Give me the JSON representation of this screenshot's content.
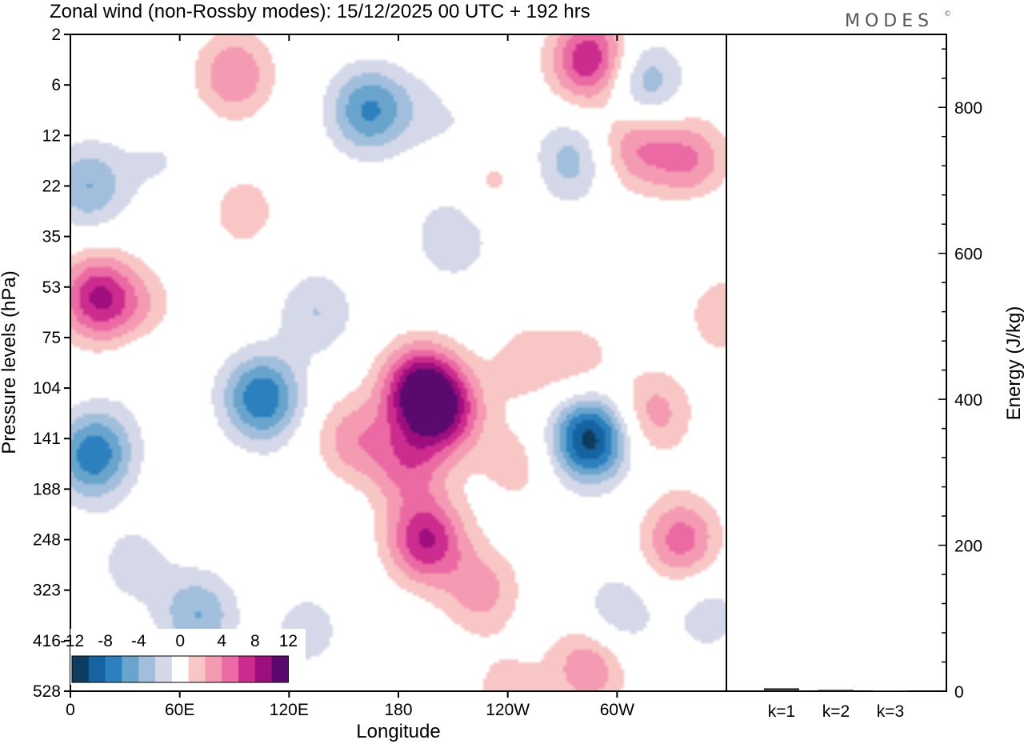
{
  "brand": {
    "name": "MODES",
    "mark": "©"
  },
  "chart_data": [
    {
      "type": "heatmap",
      "title": "Zonal wind (non-Rossby modes):  15/12/2025  00 UTC  + 192 hrs",
      "xlabel": "Longitude",
      "ylabel": "Pressure levels (hPa)",
      "x_ticks": [
        "0",
        "60E",
        "120E",
        "180",
        "120W",
        "60W"
      ],
      "y_levels": [
        "2",
        "6",
        "12",
        "22",
        "35",
        "53",
        "75",
        "104",
        "141",
        "188",
        "248",
        "323",
        "416",
        "528"
      ],
      "xlim_deg": [
        0,
        360
      ],
      "colorbar": {
        "tick_labels": [
          "-12",
          "-8",
          "-4",
          "0",
          "4",
          "8",
          "12"
        ],
        "levels": [
          -14,
          -12,
          -10,
          -8,
          -6,
          -4,
          -2,
          2,
          4,
          6,
          8,
          10,
          12,
          14
        ],
        "colors": [
          "#0e3c5e",
          "#1563a0",
          "#2b80bd",
          "#68a4cc",
          "#a1bfdc",
          "#d5d8e8",
          "#ffffff",
          "#f8c6c4",
          "#f49ab2",
          "#eb6aa3",
          "#cc2c8e",
          "#9e0e7f",
          "#5a0a6e"
        ]
      },
      "features": [
        {
          "lon": 50,
          "level": 2.5,
          "value": -2
        },
        {
          "lon": 95,
          "level": 3.5,
          "value": 3
        },
        {
          "lon": 163,
          "level": 1.5,
          "value": -8
        },
        {
          "lon": 285,
          "level": 0.5,
          "value": 10
        },
        {
          "lon": 315,
          "level": 1.0,
          "value": -6
        },
        {
          "lon": 275,
          "level": 2.5,
          "value": -5
        },
        {
          "lon": 40,
          "level": 5.5,
          "value": 3
        },
        {
          "lon": 185,
          "level": 8.5,
          "value": 6
        },
        {
          "lon": 205,
          "level": 7.5,
          "value": 9
        },
        {
          "lon": 225,
          "level": 11.0,
          "value": 5
        },
        {
          "lon": 135,
          "level": 5.5,
          "value": -4
        },
        {
          "lon": 15,
          "level": 8.2,
          "value": -6
        },
        {
          "lon": 280,
          "level": 6.5,
          "value": 3
        },
        {
          "lon": 320,
          "level": 7.5,
          "value": 5
        },
        {
          "lon": 285,
          "level": 12.5,
          "value": 6
        },
        {
          "lon": 335,
          "level": 10.0,
          "value": 7
        },
        {
          "lon": 195,
          "level": 10.0,
          "value": 10
        },
        {
          "lon": 192,
          "level": 7.0,
          "value": 12
        },
        {
          "lon": 285,
          "level": 8.0,
          "value": -13
        },
        {
          "lon": 70,
          "level": 11.5,
          "value": -6
        },
        {
          "lon": 210,
          "level": 4.0,
          "value": -4
        },
        {
          "lon": 10,
          "level": 3.0,
          "value": -6
        },
        {
          "lon": 340,
          "level": 2.5,
          "value": 6
        },
        {
          "lon": 15,
          "level": 5.2,
          "value": 10
        },
        {
          "lon": 105,
          "level": 7.2,
          "value": -10
        },
        {
          "lon": 35,
          "level": 10.5,
          "value": -3
        },
        {
          "lon": 155,
          "level": 8.0,
          "value": 5
        },
        {
          "lon": 10,
          "level": 8.5,
          "value": -4
        },
        {
          "lon": 130,
          "level": 11.8,
          "value": -3
        },
        {
          "lon": 240,
          "level": 13.0,
          "value": 3
        },
        {
          "lon": 300,
          "level": 11.5,
          "value": -4
        },
        {
          "lon": 350,
          "level": 11.5,
          "value": -3
        },
        {
          "lon": 250,
          "level": 6.5,
          "value": 3
        },
        {
          "lon": 220,
          "level": 2.0,
          "value": -2
        },
        {
          "lon": 190,
          "level": 1.5,
          "value": -2
        },
        {
          "lon": 120,
          "level": 9.5,
          "value": -2
        },
        {
          "lon": 345,
          "level": 4.0,
          "value": -2
        },
        {
          "lon": 45,
          "level": 6.5,
          "value": -2
        },
        {
          "lon": 90,
          "level": 0.8,
          "value": 6
        },
        {
          "lon": 310,
          "level": 2.2,
          "value": 6
        },
        {
          "lon": 360,
          "level": 5.5,
          "value": 4
        },
        {
          "lon": 245,
          "level": 8.5,
          "value": 3
        },
        {
          "lon": 230,
          "level": 2.8,
          "value": 3
        }
      ]
    },
    {
      "type": "bar",
      "ylabel": "Energy (J/kg)",
      "categories": [
        "k=1",
        "k=2",
        "k=3"
      ],
      "values": [
        4,
        2,
        1
      ],
      "y_ticks": [
        "0",
        "200",
        "400",
        "600",
        "800"
      ],
      "ylim": [
        0,
        900
      ]
    }
  ]
}
